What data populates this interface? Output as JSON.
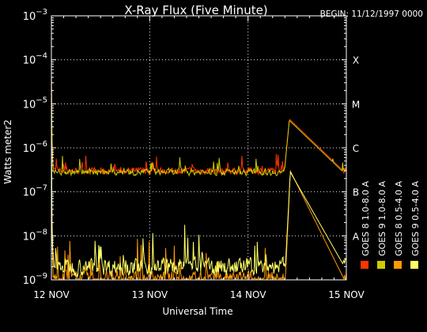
{
  "chart_data": {
    "type": "line",
    "title": "X-Ray Flux (Five Minute)",
    "begin_label": "BEGIN: 11/12/1997 0000",
    "xlabel": "Universal Time",
    "ylabel": "Watts meter2",
    "y_scale": "log",
    "ylim": [
      1e-09,
      0.001
    ],
    "xlim_days": [
      0,
      3
    ],
    "x_ticks": [
      {
        "day": 0,
        "label": "12 NOV"
      },
      {
        "day": 1,
        "label": "13 NOV"
      },
      {
        "day": 2,
        "label": "14 NOV"
      },
      {
        "day": 3,
        "label": "15 NOV"
      }
    ],
    "y_ticks": [
      {
        "exp": -9,
        "base": "10",
        "sup": "−9"
      },
      {
        "exp": -8,
        "base": "10",
        "sup": "−8"
      },
      {
        "exp": -7,
        "base": "10",
        "sup": "−7"
      },
      {
        "exp": -6,
        "base": "10",
        "sup": "−6"
      },
      {
        "exp": -5,
        "base": "10",
        "sup": "−5"
      },
      {
        "exp": -4,
        "base": "10",
        "sup": "−4"
      },
      {
        "exp": -3,
        "base": "10",
        "sup": "−3"
      }
    ],
    "flare_classes": [
      {
        "exp": -8,
        "label": "A"
      },
      {
        "exp": -7,
        "label": "B"
      },
      {
        "exp": -6,
        "label": "C"
      },
      {
        "exp": -5,
        "label": "M"
      },
      {
        "exp": -4,
        "label": "X"
      }
    ],
    "grid": true,
    "legend_position": "right-vertical",
    "series": [
      {
        "name": "GOES 8 1.0-8.0 A",
        "color": "#ff3300",
        "baseline": 3e-07,
        "noise": 0.35,
        "flare": {
          "day": 2.42,
          "peak": 4.5e-06
        }
      },
      {
        "name": "GOES 8 0.5-4.0 A",
        "color": "#ff9900",
        "baseline": 1e-09,
        "noise": 0.9,
        "flare": {
          "day": 2.43,
          "peak": 3e-07
        }
      },
      {
        "name": "GOES 9 1.0-8.0 A",
        "color": "#cccc00",
        "baseline": 2.8e-07,
        "noise": 0.33,
        "flare": {
          "day": 2.42,
          "peak": 4.2e-06
        }
      },
      {
        "name": "GOES 9 0.5-4.0 A",
        "color": "#ffff66",
        "baseline": 2e-09,
        "noise": 0.85,
        "flare": {
          "day": 2.43,
          "peak": 2.8e-07
        }
      }
    ]
  }
}
